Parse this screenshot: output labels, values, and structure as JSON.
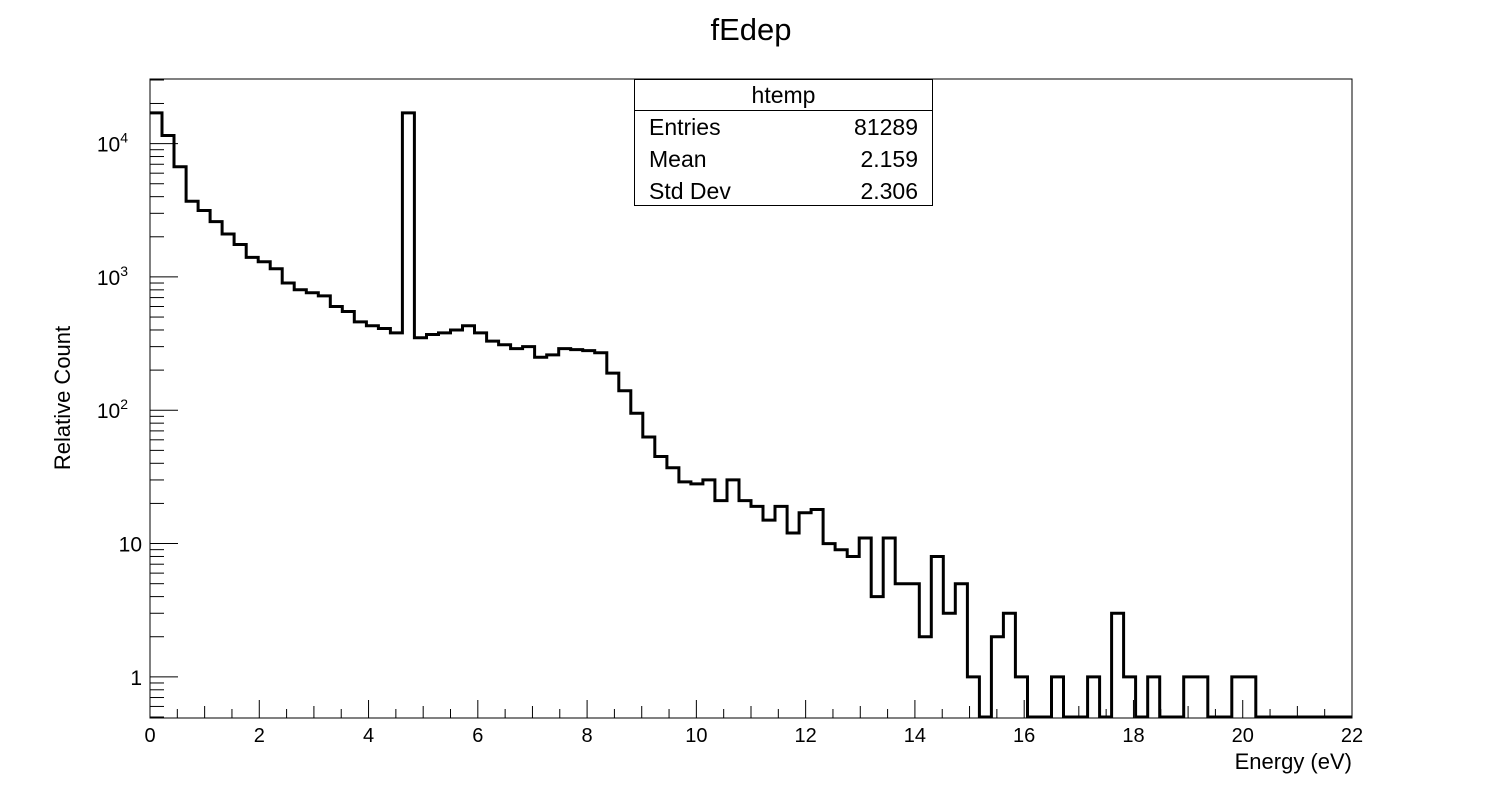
{
  "chart_data": {
    "type": "histogram",
    "title": "fEdep",
    "xlabel": "Energy (eV)",
    "ylabel": "Relative Count",
    "xlim": [
      0,
      22
    ],
    "ylim": [
      0.5,
      30000
    ],
    "yscale": "log",
    "grid": false,
    "xticks": [
      0,
      2,
      4,
      6,
      8,
      10,
      12,
      14,
      16,
      18,
      20,
      22
    ],
    "ytick_labels": [
      {
        "value": 1,
        "label": "1"
      },
      {
        "value": 10,
        "label": "10"
      },
      {
        "value": 100,
        "label": "10",
        "exp": "2"
      },
      {
        "value": 1000,
        "label": "10",
        "exp": "3"
      },
      {
        "value": 10000,
        "label": "10",
        "exp": "4"
      }
    ],
    "bin_width": 0.22,
    "values": [
      17000,
      11500,
      6700,
      3700,
      3150,
      2600,
      2100,
      1750,
      1400,
      1300,
      1150,
      900,
      800,
      760,
      720,
      600,
      550,
      460,
      430,
      410,
      380,
      17000,
      350,
      370,
      380,
      400,
      430,
      380,
      330,
      310,
      290,
      300,
      250,
      260,
      290,
      285,
      280,
      270,
      190,
      140,
      95,
      63,
      45,
      37,
      29,
      28,
      30,
      21,
      30,
      21,
      19,
      15,
      19,
      12,
      17,
      18,
      10,
      9,
      8,
      11,
      4,
      11,
      5,
      5,
      2,
      8,
      3,
      5,
      1,
      0.5,
      2,
      3,
      1,
      0.5,
      0.5,
      1,
      0.5,
      0.5,
      1,
      0.5,
      3,
      1,
      0.5,
      1,
      0.5,
      0.5,
      1,
      1,
      0.5,
      0.5,
      1,
      1,
      0.5,
      0.5,
      0.5,
      0.5,
      0.5,
      0.5,
      0.5,
      0.5
    ],
    "stats": {
      "name": "htemp",
      "rows": [
        {
          "label": "Entries",
          "value": "81289"
        },
        {
          "label": "Mean",
          "value": "2.159"
        },
        {
          "label": "Std Dev",
          "value": "2.306"
        }
      ]
    }
  }
}
